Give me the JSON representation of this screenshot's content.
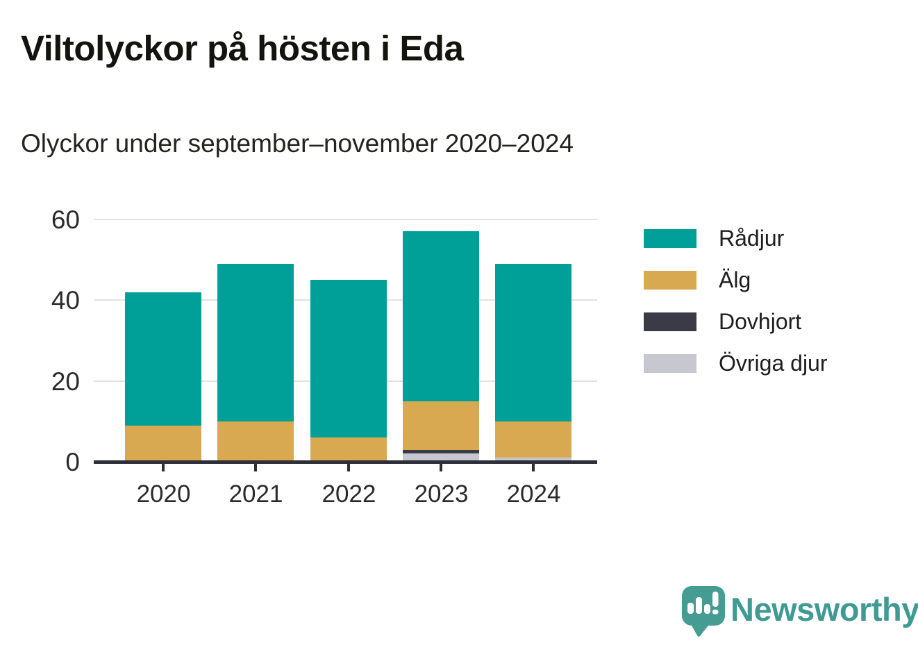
{
  "page": {
    "title": "Viltolyckor på hösten i Eda",
    "subtitle": "Olyckor under september–november 2020–2024"
  },
  "chart_data": {
    "type": "bar",
    "stacked": true,
    "title": "Viltolyckor på hösten i Eda",
    "subtitle": "Olyckor under september–november 2020–2024",
    "categories": [
      "2020",
      "2021",
      "2022",
      "2023",
      "2024"
    ],
    "series": [
      {
        "name": "Rådjur",
        "color": "#00a099",
        "values": [
          33,
          39,
          39,
          42,
          39
        ]
      },
      {
        "name": "Älg",
        "color": "#d8a951",
        "values": [
          9,
          10,
          6,
          12,
          9
        ]
      },
      {
        "name": "Dovhjort",
        "color": "#3b3b47",
        "values": [
          0,
          0,
          0,
          1,
          0
        ]
      },
      {
        "name": "Övriga djur",
        "color": "#c7c7cf",
        "values": [
          0,
          0,
          0,
          2,
          1
        ]
      }
    ],
    "stack_order_bottom_to_top": [
      "Övriga djur",
      "Dovhjort",
      "Älg",
      "Rådjur"
    ],
    "totals": [
      42,
      49,
      45,
      57,
      49
    ],
    "xlabel": "",
    "ylabel": "",
    "ylim": [
      0,
      60
    ],
    "yticks": [
      0,
      20,
      40,
      60
    ],
    "grid": true,
    "legend_position": "right",
    "colors": {
      "axis": "#2e2e38",
      "gridline": "#e2e2e2",
      "tick_text": "#2b2b2b"
    }
  },
  "branding": {
    "logo_text": "Newsworthy",
    "logo_icon": "newsworthy-speech-bubble-bar-chart-icon",
    "logo_color": "#3f9a93"
  }
}
